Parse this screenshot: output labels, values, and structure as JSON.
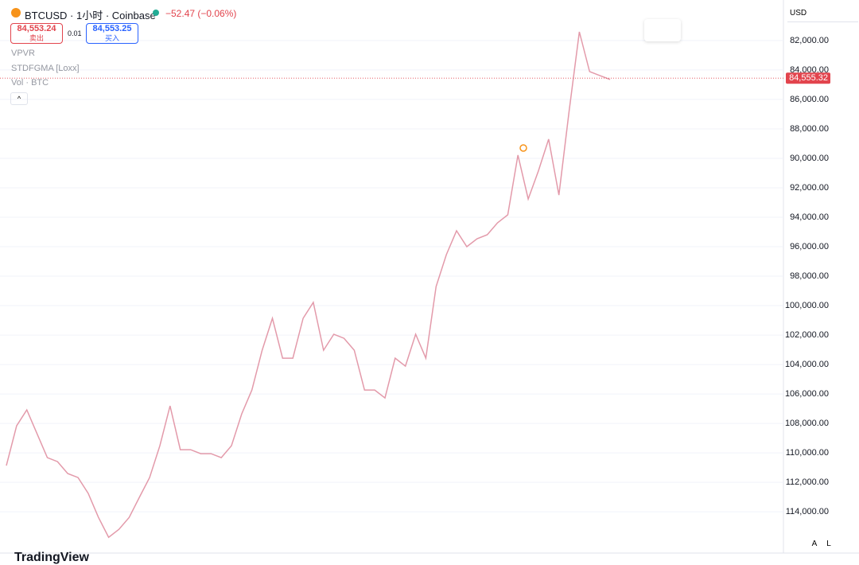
{
  "header": {
    "symbol": "BTCUSD · 1小时 · Coinbase",
    "change": "−52.47 (−0.06%)",
    "sell_price": "84,553.24",
    "sell_label": "卖出",
    "spread": "0.01",
    "buy_price": "84,553.25",
    "buy_label": "买入",
    "currency": "USD",
    "indicators": [
      "VPVR",
      "STDFGMA [Loxx]",
      "Vol · BTC"
    ],
    "brand": "TradingView",
    "scale_buttons": [
      "A",
      "L"
    ]
  },
  "chart_data": {
    "type": "line",
    "color": "#e39aaa",
    "values": [
      110860,
      108160,
      107080,
      108700,
      110320,
      110590,
      111400,
      111670,
      112750,
      114380,
      115730,
      115190,
      114380,
      113020,
      111670,
      109510,
      106810,
      109780,
      109780,
      110050,
      110050,
      110320,
      109510,
      107350,
      105730,
      103030,
      100860,
      103570,
      103570,
      100860,
      99780,
      103030,
      101940,
      102220,
      103030,
      105730,
      105730,
      106270,
      103570,
      104110,
      101940,
      103570,
      98700,
      96540,
      94920,
      96000,
      95460,
      95190,
      94380,
      93840,
      89780,
      92760,
      90860,
      88700,
      92490,
      86810,
      81410,
      84110,
      84380,
      84650
    ],
    "ylim": [
      79250,
      116800
    ],
    "inverted": true,
    "grid": true,
    "yticks": [
      {
        "value": 82000,
        "label": "82,000.00"
      },
      {
        "value": 84000,
        "label": "84,000.00"
      },
      {
        "value": 86000,
        "label": "86,000.00"
      },
      {
        "value": 88000,
        "label": "88,000.00"
      },
      {
        "value": 90000,
        "label": "90,000.00"
      },
      {
        "value": 92000,
        "label": "92,000.00"
      },
      {
        "value": 94000,
        "label": "94,000.00"
      },
      {
        "value": 96000,
        "label": "96,000.00"
      },
      {
        "value": 98000,
        "label": "98,000.00"
      },
      {
        "value": 100000,
        "label": "100,000.00"
      },
      {
        "value": 102000,
        "label": "102,000.00"
      },
      {
        "value": 104000,
        "label": "104,000.00"
      },
      {
        "value": 106000,
        "label": "106,000.00"
      },
      {
        "value": 108000,
        "label": "108,000.00"
      },
      {
        "value": 110000,
        "label": "110,000.00"
      },
      {
        "value": 112000,
        "label": "112,000.00"
      },
      {
        "value": 114000,
        "label": "114,000.00"
      }
    ],
    "last_price": {
      "value": 84555.32,
      "label": "84,555.32"
    },
    "last_price_color": "#e2444d"
  }
}
